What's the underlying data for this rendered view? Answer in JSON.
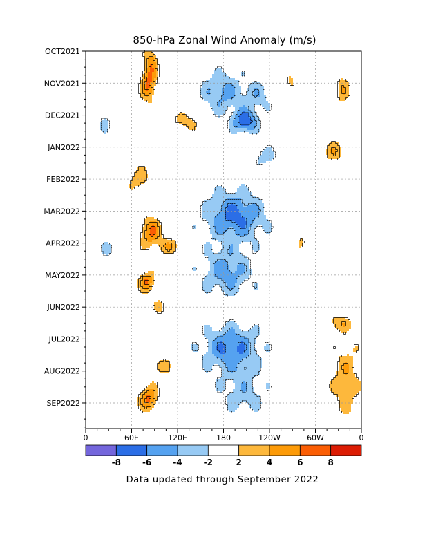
{
  "chart_data": {
    "type": "heatmap",
    "title": "850-hPa Zonal Wind Anomaly (m/s)",
    "footer": "Data updated through September 2022",
    "x_ticks": [
      "0",
      "60E",
      "120E",
      "180",
      "120W",
      "60W",
      "0"
    ],
    "x_tick_deg": [
      0,
      60,
      120,
      180,
      240,
      300,
      360
    ],
    "y_ticks": [
      "OCT2021",
      "NOV2021",
      "DEC2021",
      "JAN2022",
      "FEB2022",
      "MAR2022",
      "APR2022",
      "MAY2022",
      "JUN2022",
      "JUL2022",
      "AUG2022",
      "SEP2022"
    ],
    "y_tick_month": [
      0,
      1,
      2,
      3,
      4,
      5,
      6,
      7,
      8,
      9,
      10,
      11
    ],
    "xlim": [
      0,
      360
    ],
    "ylim_months": [
      0,
      11.8
    ],
    "colorbar": {
      "labels": [
        "-8",
        "-6",
        "-4",
        "-2",
        "2",
        "4",
        "6",
        "8"
      ],
      "colors": [
        "#7466dc",
        "#2b6ee6",
        "#55a2f0",
        "#97caf4",
        "#ffffff",
        "#fdb83c",
        "#fd9b08",
        "#fb5e04",
        "#dc1c04"
      ]
    },
    "grid": true,
    "anomalies": [
      {
        "lon": 82,
        "month": 1.0,
        "value": 6.5,
        "wx": 10,
        "wy": 0.55
      },
      {
        "lon": 86,
        "month": 0.3,
        "value": 4.2,
        "wx": 8,
        "wy": 0.4
      },
      {
        "lon": 130,
        "month": 2.2,
        "value": 3.2,
        "wx": 18,
        "wy": 0.25
      },
      {
        "lon": 70,
        "month": 4.0,
        "value": 3.6,
        "wx": 12,
        "wy": 0.35
      },
      {
        "lon": 85,
        "month": 5.65,
        "value": 6.2,
        "wx": 14,
        "wy": 0.45
      },
      {
        "lon": 110,
        "month": 6.1,
        "value": 3.6,
        "wx": 14,
        "wy": 0.25
      },
      {
        "lon": 80,
        "month": 7.2,
        "value": 6.2,
        "wx": 10,
        "wy": 0.3
      },
      {
        "lon": 98,
        "month": 8.0,
        "value": 3.0,
        "wx": 8,
        "wy": 0.25
      },
      {
        "lon": 95,
        "month": 9.85,
        "value": 3.2,
        "wx": 14,
        "wy": 0.3
      },
      {
        "lon": 82,
        "month": 10.85,
        "value": 6.3,
        "wx": 12,
        "wy": 0.4
      },
      {
        "lon": 325,
        "month": 3.15,
        "value": 3.5,
        "wx": 12,
        "wy": 0.35
      },
      {
        "lon": 335,
        "month": 1.2,
        "value": 3.4,
        "wx": 10,
        "wy": 0.5
      },
      {
        "lon": 340,
        "month": 10.3,
        "value": 3.6,
        "wx": 18,
        "wy": 1.2
      },
      {
        "lon": 330,
        "month": 8.5,
        "value": 3.3,
        "wx": 18,
        "wy": 0.25
      },
      {
        "lon": 268,
        "month": 0.9,
        "value": 3.0,
        "wx": 6,
        "wy": 0.2
      },
      {
        "lon": 282,
        "month": 6.0,
        "value": 3.0,
        "wx": 5,
        "wy": 0.25
      },
      {
        "lon": 178,
        "month": 1.3,
        "value": -4.6,
        "wx": 28,
        "wy": 0.65
      },
      {
        "lon": 208,
        "month": 2.2,
        "value": -7.6,
        "wx": 16,
        "wy": 0.35
      },
      {
        "lon": 225,
        "month": 1.4,
        "value": -3.0,
        "wx": 20,
        "wy": 0.5
      },
      {
        "lon": 235,
        "month": 3.3,
        "value": -3.2,
        "wx": 16,
        "wy": 0.3
      },
      {
        "lon": 195,
        "month": 5.15,
        "value": -6.8,
        "wx": 38,
        "wy": 0.75
      },
      {
        "lon": 185,
        "month": 6.9,
        "value": -5.0,
        "wx": 32,
        "wy": 0.75
      },
      {
        "lon": 190,
        "month": 9.3,
        "value": -6.4,
        "wx": 36,
        "wy": 0.7
      },
      {
        "lon": 205,
        "month": 10.7,
        "value": -3.2,
        "wx": 30,
        "wy": 0.7
      },
      {
        "lon": 25,
        "month": 2.2,
        "value": -2.6,
        "wx": 8,
        "wy": 0.35
      },
      {
        "lon": 30,
        "month": 6.2,
        "value": -2.5,
        "wx": 10,
        "wy": 0.3
      }
    ]
  }
}
